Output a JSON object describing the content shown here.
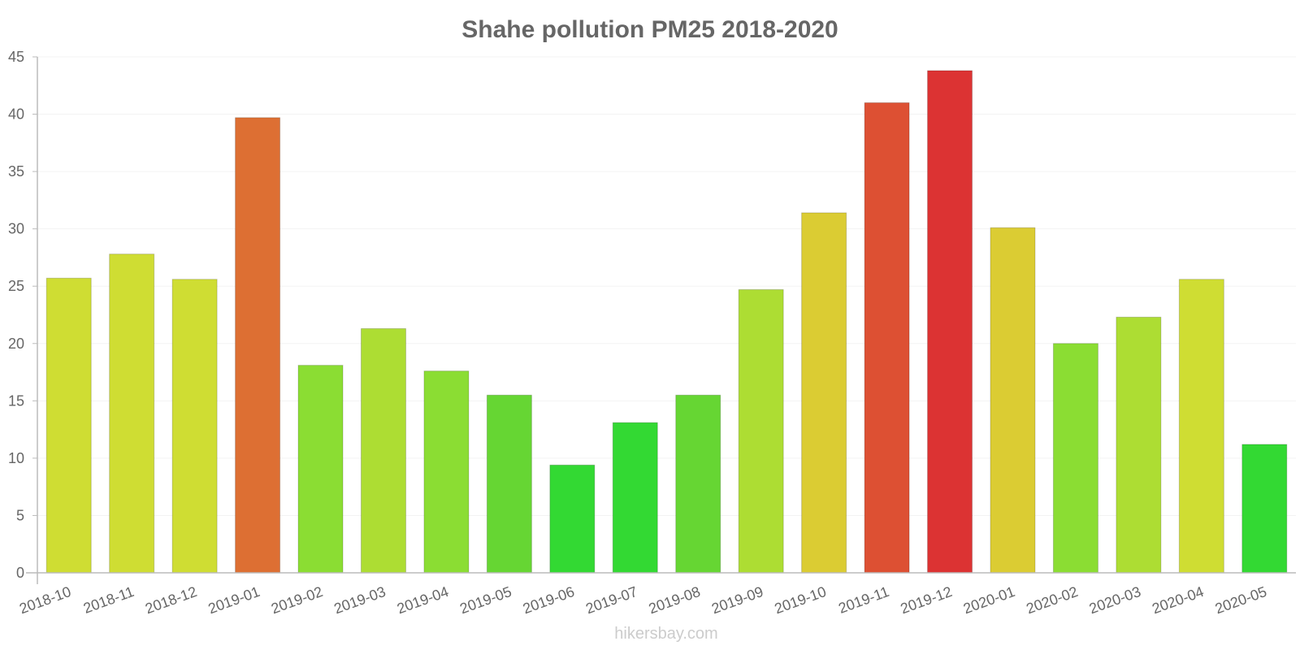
{
  "watermark": "hikersbay.com",
  "chart_data": {
    "type": "bar",
    "title": "Shahe pollution PM25 2018-2020",
    "xlabel": "",
    "ylabel": "",
    "ylim": [
      0,
      45
    ],
    "yticks": [
      0,
      5,
      10,
      15,
      20,
      25,
      30,
      35,
      40,
      45
    ],
    "grid": true,
    "legend": "none",
    "categories": [
      "2018-10",
      "2018-11",
      "2018-12",
      "2019-01",
      "2019-02",
      "2019-03",
      "2019-04",
      "2019-05",
      "2019-06",
      "2019-07",
      "2019-08",
      "2019-09",
      "2019-10",
      "2019-11",
      "2019-12",
      "2020-01",
      "2020-02",
      "2020-03",
      "2020-04",
      "2020-05"
    ],
    "values": [
      25.7,
      27.8,
      25.6,
      39.7,
      18.1,
      21.3,
      17.6,
      15.5,
      9.4,
      13.1,
      15.5,
      24.7,
      31.4,
      41.0,
      43.8,
      30.1,
      20.0,
      22.3,
      25.6,
      11.2
    ],
    "colors": [
      "#cfdd33",
      "#cfdd33",
      "#cfdd33",
      "#dd6f33",
      "#8bdd33",
      "#addd33",
      "#8bdd33",
      "#66d633",
      "#33d933",
      "#33d933",
      "#66d633",
      "#addd33",
      "#dbcc33",
      "#dd5033",
      "#dc3333",
      "#dbcc33",
      "#8bdd33",
      "#addd33",
      "#cfdd33",
      "#33d933"
    ]
  }
}
